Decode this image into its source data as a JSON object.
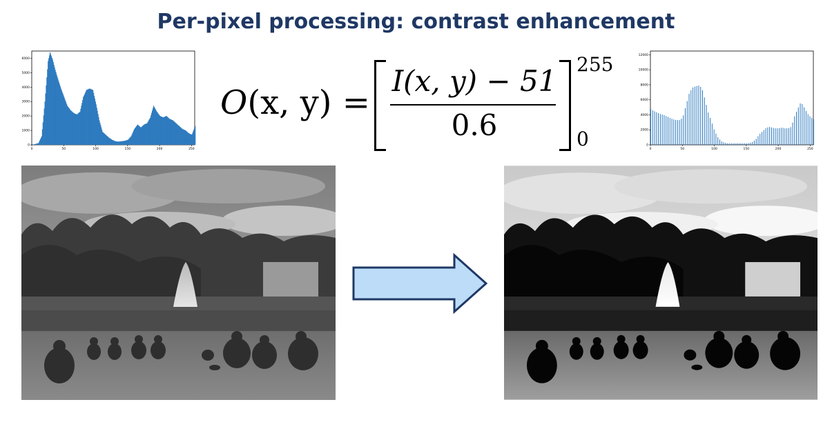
{
  "slide": {
    "title": "Per-pixel processing: contrast enhancement"
  },
  "formula": {
    "lhs_fn": "O",
    "lhs_args": "(x, y) =",
    "numerator": "I(x, y) − 51",
    "denominator": "0.6",
    "upper_limit": "255",
    "lower_limit": "0"
  },
  "colors": {
    "title": "#1f3864",
    "histogram_bars": "#2f7bbf",
    "arrow_fill": "#bcdcf8",
    "arrow_stroke": "#1f3864"
  },
  "images": {
    "left": {
      "description_icon": "photo-grayscale-original"
    },
    "right": {
      "description_icon": "photo-grayscale-contrast-enhanced"
    }
  },
  "chart_data": [
    {
      "type": "bar",
      "xlim": [
        0,
        255
      ],
      "ylim": [
        0,
        6500
      ],
      "xticks": [
        "0",
        "50",
        "100",
        "150",
        "200",
        "250"
      ],
      "yticks": [
        "0",
        "1000",
        "2000",
        "3000",
        "4000",
        "5000",
        "6000"
      ],
      "x": [
        0,
        10,
        15,
        20,
        25,
        28,
        32,
        36,
        40,
        45,
        50,
        55,
        60,
        65,
        70,
        75,
        80,
        85,
        90,
        95,
        100,
        105,
        110,
        115,
        120,
        125,
        130,
        135,
        140,
        145,
        150,
        155,
        160,
        165,
        170,
        175,
        180,
        185,
        190,
        195,
        200,
        205,
        210,
        215,
        220,
        225,
        230,
        235,
        240,
        245,
        250,
        255
      ],
      "values": [
        0,
        120,
        600,
        3000,
        5800,
        6400,
        5900,
        5200,
        4600,
        3900,
        3300,
        2700,
        2400,
        2200,
        2100,
        2300,
        3300,
        3800,
        3900,
        3800,
        2800,
        1700,
        900,
        700,
        500,
        350,
        250,
        220,
        250,
        280,
        350,
        600,
        1100,
        1400,
        1200,
        1400,
        1500,
        1900,
        2700,
        2300,
        2000,
        1900,
        2000,
        1800,
        1700,
        1500,
        1300,
        1100,
        1000,
        800,
        700,
        1300
      ]
    },
    {
      "type": "bar",
      "xlim": [
        0,
        255
      ],
      "ylim": [
        0,
        12500
      ],
      "xticks": [
        "0",
        "50",
        "100",
        "150",
        "200",
        "250"
      ],
      "yticks": [
        "0",
        "2000",
        "4000",
        "6000",
        "8000",
        "10000",
        "12000"
      ],
      "x": [
        0,
        5,
        10,
        15,
        20,
        25,
        30,
        35,
        40,
        45,
        50,
        55,
        60,
        65,
        70,
        75,
        80,
        85,
        90,
        95,
        100,
        105,
        110,
        115,
        120,
        125,
        130,
        135,
        140,
        145,
        150,
        155,
        160,
        165,
        170,
        175,
        180,
        185,
        190,
        195,
        200,
        205,
        210,
        215,
        220,
        225,
        230,
        235,
        240,
        245,
        250,
        255
      ],
      "values": [
        4800,
        4500,
        4300,
        4100,
        4000,
        3800,
        3600,
        3400,
        3300,
        3300,
        3600,
        5200,
        6800,
        7600,
        7800,
        7900,
        7600,
        6000,
        4300,
        3100,
        1800,
        1000,
        500,
        300,
        200,
        200,
        200,
        200,
        200,
        200,
        200,
        250,
        400,
        800,
        1400,
        1800,
        2200,
        2400,
        2300,
        2200,
        2200,
        2300,
        2200,
        2200,
        2400,
        3800,
        4800,
        5700,
        5000,
        4200,
        3700,
        3400
      ]
    }
  ]
}
